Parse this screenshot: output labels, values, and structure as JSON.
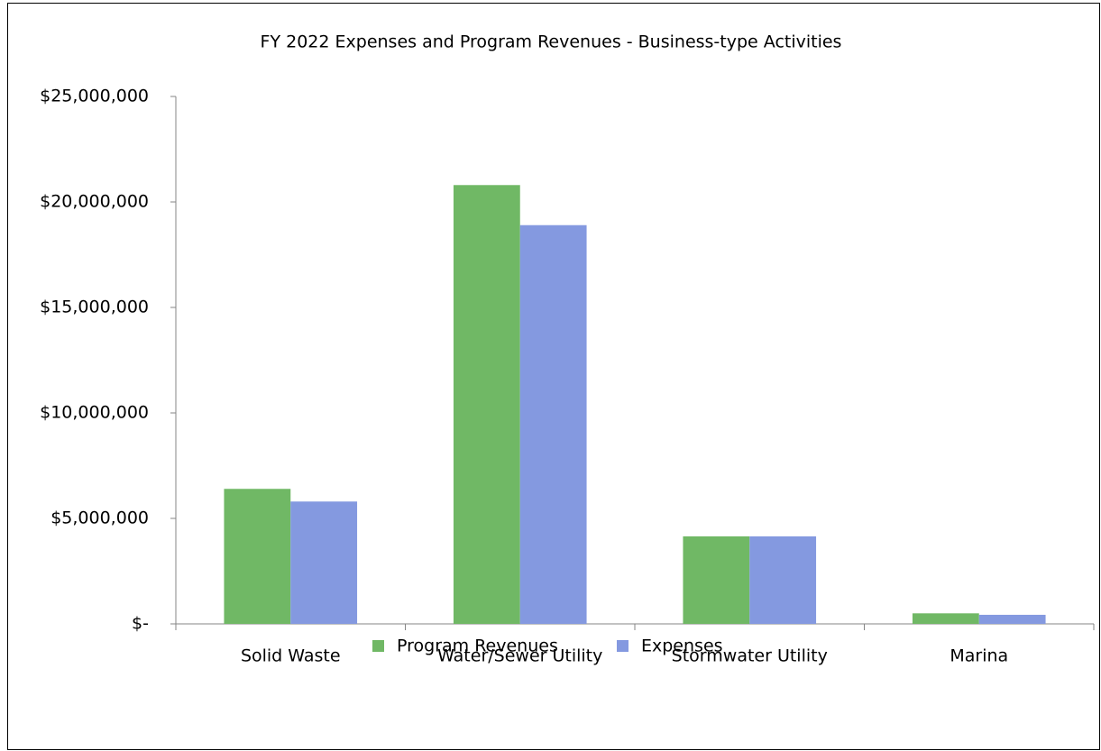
{
  "chart_data": {
    "type": "bar",
    "title": "FY 2022 Expenses and Program Revenues - Business-type Activities",
    "categories": [
      "Solid Waste",
      "Water/Sewer Utility",
      "Stormwater Utility",
      "Marina"
    ],
    "series": [
      {
        "name": "Program Revenues",
        "color": "#70b865",
        "values": [
          6400000,
          20800000,
          4150000,
          500000
        ]
      },
      {
        "name": "Expenses",
        "color": "#8499e0",
        "values": [
          5800000,
          18900000,
          4150000,
          430000
        ]
      }
    ],
    "ylim": [
      0,
      25000000
    ],
    "yticks": [
      {
        "value": 0,
        "label": "$-"
      },
      {
        "value": 5000000,
        "label": "$5,000,000"
      },
      {
        "value": 10000000,
        "label": "$10,000,000"
      },
      {
        "value": 15000000,
        "label": "$15,000,000"
      },
      {
        "value": 20000000,
        "label": "$20,000,000"
      },
      {
        "value": 25000000,
        "label": "$25,000,000"
      }
    ],
    "grid": false,
    "legend": "bottom"
  }
}
